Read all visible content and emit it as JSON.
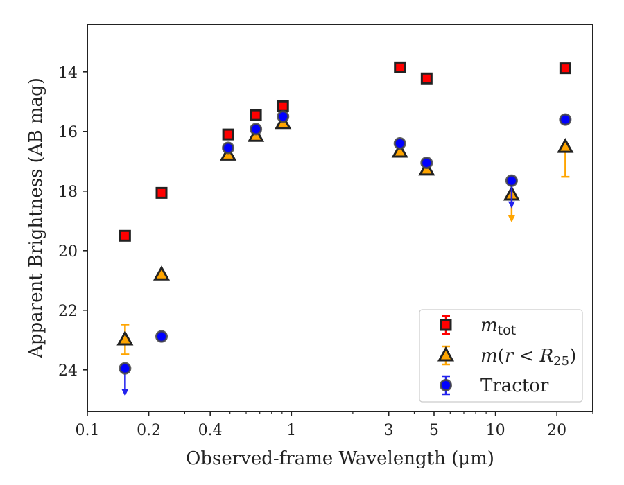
{
  "chart_data": {
    "type": "scatter",
    "x_scale": "log",
    "xlim": [
      0.1,
      30
    ],
    "ylim": [
      25.4,
      12.4
    ],
    "y_inverted": true,
    "xlabel": "Observed-frame Wavelength (μm)",
    "ylabel": "Apparent Brightness (AB mag)",
    "x_ticks": [
      {
        "value": 0.1,
        "label": "0.1"
      },
      {
        "value": 0.2,
        "label": "0.2"
      },
      {
        "value": 0.4,
        "label": "0.4"
      },
      {
        "value": 1,
        "label": "1"
      },
      {
        "value": 3,
        "label": "3"
      },
      {
        "value": 5,
        "label": "5"
      },
      {
        "value": 10,
        "label": "10"
      },
      {
        "value": 20,
        "label": "20"
      }
    ],
    "y_ticks": [
      {
        "value": 14,
        "label": "14"
      },
      {
        "value": 16,
        "label": "16"
      },
      {
        "value": 18,
        "label": "18"
      },
      {
        "value": 20,
        "label": "20"
      },
      {
        "value": 22,
        "label": "22"
      },
      {
        "value": 24,
        "label": "24"
      }
    ],
    "legend_position": "bottom-right",
    "series": [
      {
        "name": "m_tot",
        "legend_label": "mtot",
        "marker": "square",
        "color": "#ff0000",
        "edgecolor": "#222222",
        "errcolor": "#ff0000",
        "points": [
          {
            "x": 0.153,
            "y": 19.5
          },
          {
            "x": 0.231,
            "y": 18.06
          },
          {
            "x": 0.49,
            "y": 16.1
          },
          {
            "x": 0.67,
            "y": 15.45
          },
          {
            "x": 0.91,
            "y": 15.15
          },
          {
            "x": 3.4,
            "y": 13.85
          },
          {
            "x": 4.6,
            "y": 14.22
          },
          {
            "x": 22,
            "y": 13.88
          }
        ]
      },
      {
        "name": "m(r < R25)",
        "legend_label": "m(r < R25)",
        "marker": "triangle",
        "color": "#ffa500",
        "edgecolor": "#222222",
        "errcolor": "#ffa500",
        "points": [
          {
            "x": 0.153,
            "y": 22.98,
            "yerr": 0.5
          },
          {
            "x": 0.231,
            "y": 20.8
          },
          {
            "x": 0.49,
            "y": 16.78
          },
          {
            "x": 0.67,
            "y": 16.15
          },
          {
            "x": 0.91,
            "y": 15.72
          },
          {
            "x": 3.4,
            "y": 16.68
          },
          {
            "x": 4.6,
            "y": 17.28
          },
          {
            "x": 12,
            "y": 18.12,
            "upper_limit": true
          },
          {
            "x": 22,
            "y": 16.52,
            "yerr": 1.0
          }
        ]
      },
      {
        "name": "Tractor",
        "legend_label": "Tractor",
        "marker": "circle",
        "color": "#0000ff",
        "edgecolor": "#444444",
        "errcolor": "#2222ee",
        "points": [
          {
            "x": 0.153,
            "y": 23.95,
            "upper_limit": true
          },
          {
            "x": 0.231,
            "y": 22.88
          },
          {
            "x": 0.49,
            "y": 16.55
          },
          {
            "x": 0.67,
            "y": 15.92
          },
          {
            "x": 0.91,
            "y": 15.5
          },
          {
            "x": 3.4,
            "y": 16.4
          },
          {
            "x": 4.6,
            "y": 17.05
          },
          {
            "x": 12,
            "y": 17.65,
            "upper_limit": true
          },
          {
            "x": 22,
            "y": 15.6
          }
        ]
      }
    ]
  }
}
